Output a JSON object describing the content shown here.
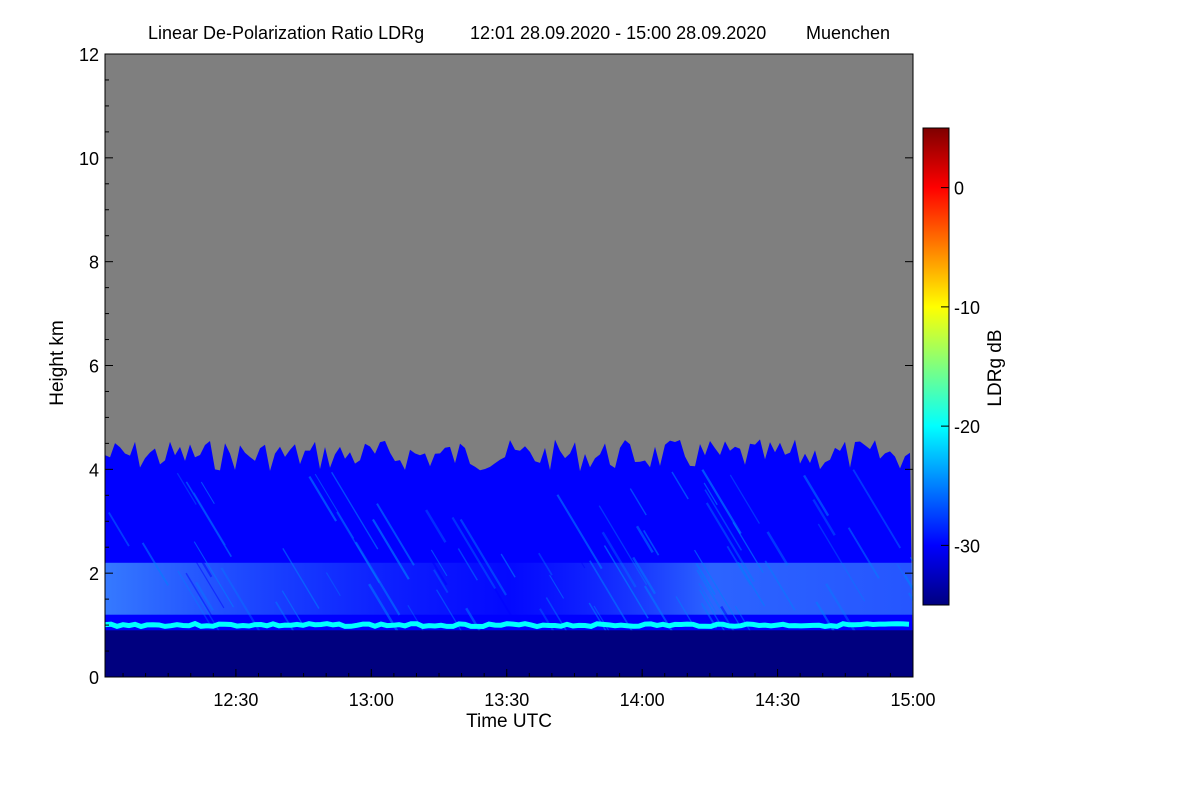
{
  "chart_data": {
    "type": "heatmap",
    "title": "Linear De-Polarization Ratio LDRg",
    "time_range": "12:01 28.09.2020 - 15:00 28.09.2020",
    "location": "Muenchen",
    "xlabel": "Time UTC",
    "ylabel": "Height km",
    "colorbar_label": "LDRg dB",
    "x_range_hours": [
      12.0167,
      15.0
    ],
    "x_ticks": [
      {
        "label": "12:30",
        "value": 12.5
      },
      {
        "label": "13:00",
        "value": 13.0
      },
      {
        "label": "13:30",
        "value": 13.5
      },
      {
        "label": "14:00",
        "value": 14.0
      },
      {
        "label": "14:30",
        "value": 14.5
      },
      {
        "label": "15:00",
        "value": 15.0
      }
    ],
    "y_range_km": [
      0,
      12
    ],
    "y_ticks": [
      {
        "label": "0",
        "value": 0
      },
      {
        "label": "2",
        "value": 2
      },
      {
        "label": "4",
        "value": 4
      },
      {
        "label": "6",
        "value": 6
      },
      {
        "label": "8",
        "value": 8
      },
      {
        "label": "10",
        "value": 10
      },
      {
        "label": "12",
        "value": 12
      }
    ],
    "colorbar_range_db": [
      -35,
      5
    ],
    "colorbar_ticks": [
      {
        "label": "0",
        "value": 0
      },
      {
        "label": "-10",
        "value": -10
      },
      {
        "label": "-20",
        "value": -20
      },
      {
        "label": "-30",
        "value": -30
      }
    ],
    "colormap": [
      "#00007f",
      "#0000ff",
      "#007fff",
      "#00ffff",
      "#7fff7f",
      "#ffff00",
      "#ff7f00",
      "#ff0000",
      "#7f0000"
    ],
    "no_data_color": "#7f7f7f",
    "features": {
      "boundary_layer_top_km": 4.3,
      "boundary_layer_ldr_db": -32,
      "aerosol_layer_km": [
        1.2,
        2.2
      ],
      "aerosol_layer_ldr_db": -27,
      "depolarization_band_km": 1.0,
      "depolarization_band_ldr_db": -22,
      "surface_layer_km": [
        0,
        0.9
      ],
      "surface_layer_ldr_db": -34
    }
  }
}
